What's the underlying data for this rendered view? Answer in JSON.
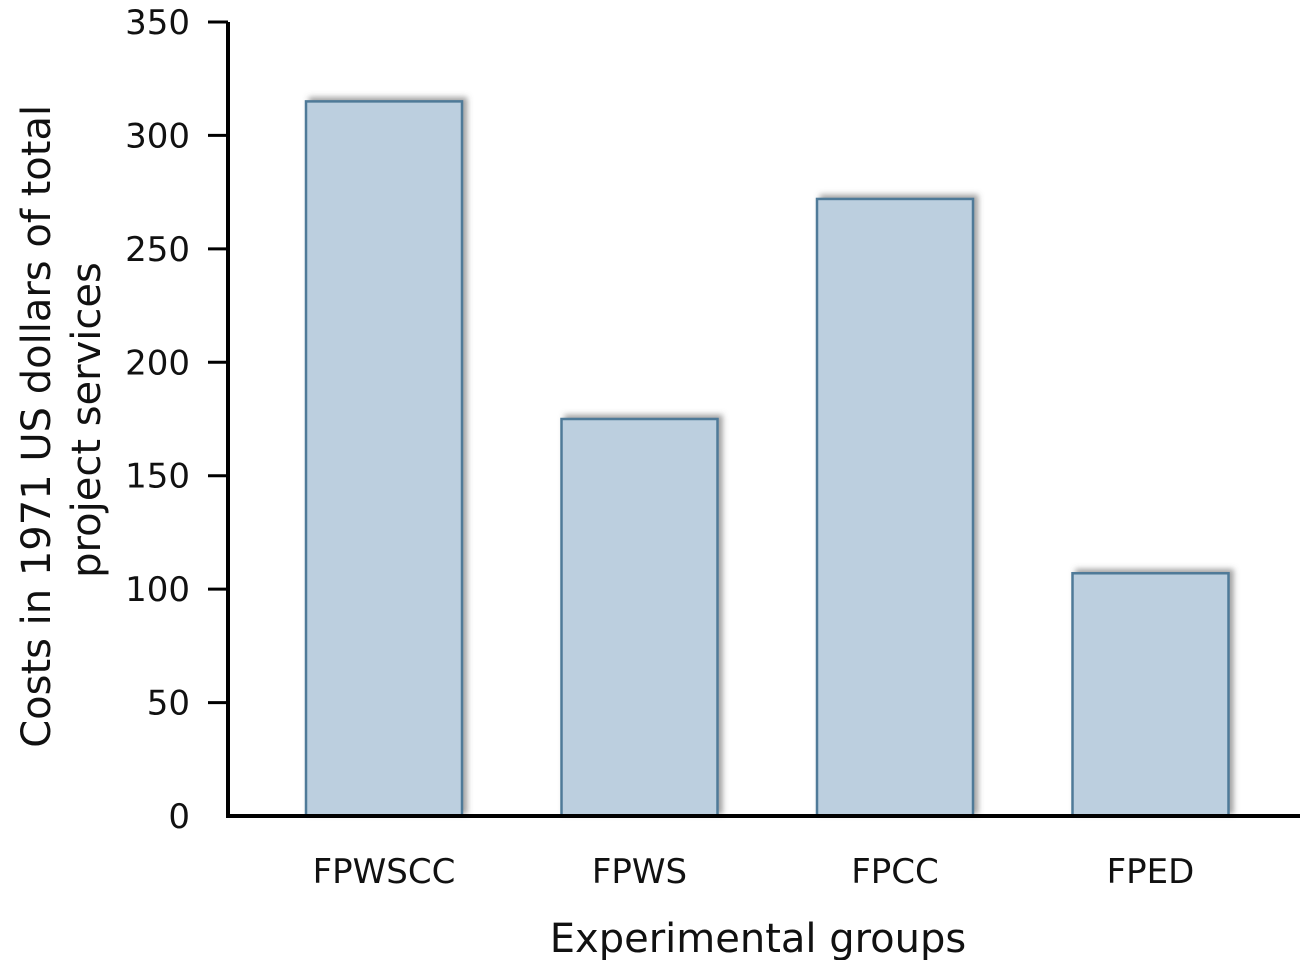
{
  "chart_data": {
    "type": "bar",
    "title": "",
    "xlabel": "Experimental groups",
    "ylabel_lines": [
      "Costs in 1971 US dollars of total",
      "project services"
    ],
    "categories": [
      "FPWSCC",
      "FPWS",
      "FPCC",
      "FPED"
    ],
    "values": [
      315,
      175,
      272,
      107
    ],
    "ylim": [
      0,
      350
    ],
    "yticks": [
      0,
      50,
      100,
      150,
      200,
      250,
      300,
      350
    ],
    "grid": false,
    "legend": "none"
  },
  "colors": {
    "bar_fill": "#bccfdf",
    "bar_stroke": "#4f7a98",
    "bar_shadow": "#8a8a8a",
    "axis": "#000000"
  }
}
